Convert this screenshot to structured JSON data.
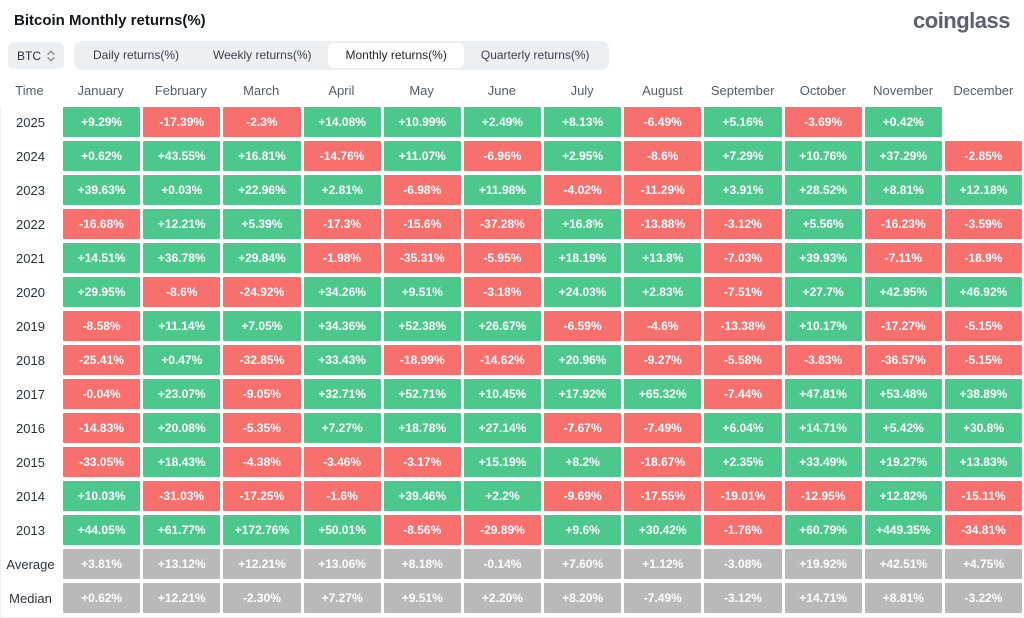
{
  "page": {
    "title": "Bitcoin Monthly returns(%)",
    "logo": "coinglass"
  },
  "controls": {
    "symbol": "BTC",
    "tabs": [
      {
        "label": "Daily returns(%)",
        "active": false
      },
      {
        "label": "Weekly returns(%)",
        "active": false
      },
      {
        "label": "Monthly returns(%)",
        "active": true
      },
      {
        "label": "Quarterly returns(%)",
        "active": false
      }
    ]
  },
  "colors": {
    "positive": "#4dc88c",
    "negative": "#f7706e",
    "neutral": "#b9b9b9"
  },
  "chart_data": {
    "type": "heatmap",
    "title": "Bitcoin Monthly returns(%)",
    "legend": "green = positive monthly return, red = negative monthly return, gray = Average/Median summary rows",
    "columns": [
      "Time",
      "January",
      "February",
      "March",
      "April",
      "May",
      "June",
      "July",
      "August",
      "September",
      "October",
      "November",
      "December"
    ],
    "rows": [
      {
        "label": "2025",
        "neutral": false,
        "values": [
          "+9.29%",
          "-17.39%",
          "-2.3%",
          "+14.08%",
          "+10.99%",
          "+2.49%",
          "+8.13%",
          "-6.49%",
          "+5.16%",
          "-3.69%",
          "+0.42%",
          ""
        ]
      },
      {
        "label": "2024",
        "neutral": false,
        "values": [
          "+0.62%",
          "+43.55%",
          "+16.81%",
          "-14.76%",
          "+11.07%",
          "-6.96%",
          "+2.95%",
          "-8.6%",
          "+7.29%",
          "+10.76%",
          "+37.29%",
          "-2.85%"
        ]
      },
      {
        "label": "2023",
        "neutral": false,
        "values": [
          "+39.63%",
          "+0.03%",
          "+22.96%",
          "+2.81%",
          "-6.98%",
          "+11.98%",
          "-4.02%",
          "-11.29%",
          "+3.91%",
          "+28.52%",
          "+8.81%",
          "+12.18%"
        ]
      },
      {
        "label": "2022",
        "neutral": false,
        "values": [
          "-16.68%",
          "+12.21%",
          "+5.39%",
          "-17.3%",
          "-15.6%",
          "-37.28%",
          "+16.8%",
          "-13.88%",
          "-3.12%",
          "+5.56%",
          "-16.23%",
          "-3.59%"
        ]
      },
      {
        "label": "2021",
        "neutral": false,
        "values": [
          "+14.51%",
          "+36.78%",
          "+29.84%",
          "-1.98%",
          "-35.31%",
          "-5.95%",
          "+18.19%",
          "+13.8%",
          "-7.03%",
          "+39.93%",
          "-7.11%",
          "-18.9%"
        ]
      },
      {
        "label": "2020",
        "neutral": false,
        "values": [
          "+29.95%",
          "-8.6%",
          "-24.92%",
          "+34.26%",
          "+9.51%",
          "-3.18%",
          "+24.03%",
          "+2.83%",
          "-7.51%",
          "+27.7%",
          "+42.95%",
          "+46.92%"
        ]
      },
      {
        "label": "2019",
        "neutral": false,
        "values": [
          "-8.58%",
          "+11.14%",
          "+7.05%",
          "+34.36%",
          "+52.38%",
          "+26.67%",
          "-6.59%",
          "-4.6%",
          "-13.38%",
          "+10.17%",
          "-17.27%",
          "-5.15%"
        ]
      },
      {
        "label": "2018",
        "neutral": false,
        "values": [
          "-25.41%",
          "+0.47%",
          "-32.85%",
          "+33.43%",
          "-18.99%",
          "-14.62%",
          "+20.96%",
          "-9.27%",
          "-5.58%",
          "-3.83%",
          "-36.57%",
          "-5.15%"
        ]
      },
      {
        "label": "2017",
        "neutral": false,
        "values": [
          "-0.04%",
          "+23.07%",
          "-9.05%",
          "+32.71%",
          "+52.71%",
          "+10.45%",
          "+17.92%",
          "+65.32%",
          "-7.44%",
          "+47.81%",
          "+53.48%",
          "+38.89%"
        ]
      },
      {
        "label": "2016",
        "neutral": false,
        "values": [
          "-14.83%",
          "+20.08%",
          "-5.35%",
          "+7.27%",
          "+18.78%",
          "+27.14%",
          "-7.67%",
          "-7.49%",
          "+6.04%",
          "+14.71%",
          "+5.42%",
          "+30.8%"
        ]
      },
      {
        "label": "2015",
        "neutral": false,
        "values": [
          "-33.05%",
          "+18.43%",
          "-4.38%",
          "-3.46%",
          "-3.17%",
          "+15.19%",
          "+8.2%",
          "-18.67%",
          "+2.35%",
          "+33.49%",
          "+19.27%",
          "+13.83%"
        ]
      },
      {
        "label": "2014",
        "neutral": false,
        "values": [
          "+10.03%",
          "-31.03%",
          "-17.25%",
          "-1.6%",
          "+39.46%",
          "+2.2%",
          "-9.69%",
          "-17.55%",
          "-19.01%",
          "-12.95%",
          "+12.82%",
          "-15.11%"
        ]
      },
      {
        "label": "2013",
        "neutral": false,
        "values": [
          "+44.05%",
          "+61.77%",
          "+172.76%",
          "+50.01%",
          "-8.56%",
          "-29.89%",
          "+9.6%",
          "+30.42%",
          "-1.76%",
          "+60.79%",
          "+449.35%",
          "-34.81%"
        ]
      },
      {
        "label": "Average",
        "neutral": true,
        "values": [
          "+3.81%",
          "+13.12%",
          "+12.21%",
          "+13.06%",
          "+8.18%",
          "-0.14%",
          "+7.60%",
          "+1.12%",
          "-3.08%",
          "+19.92%",
          "+42.51%",
          "+4.75%"
        ]
      },
      {
        "label": "Median",
        "neutral": true,
        "values": [
          "+0.62%",
          "+12.21%",
          "-2.30%",
          "+7.27%",
          "+9.51%",
          "+2.20%",
          "+8.20%",
          "-7.49%",
          "-3.12%",
          "+14.71%",
          "+8.81%",
          "-3.22%"
        ]
      }
    ]
  }
}
